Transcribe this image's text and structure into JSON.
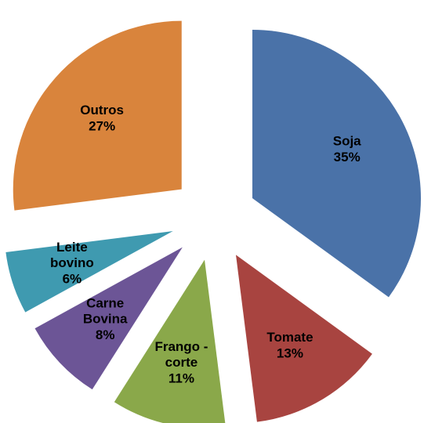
{
  "chart_data": {
    "type": "pie",
    "categories": [
      "Soja",
      "Tomate",
      "Frango - corte",
      "Carne Bovina",
      "Leite bovino",
      "Outros"
    ],
    "values": [
      35,
      13,
      11,
      8,
      6,
      27
    ],
    "value_labels": [
      "35%",
      "13%",
      "11%",
      "8%",
      "6%",
      "27%"
    ],
    "colors": [
      "#4a72a8",
      "#a84440",
      "#8aa84a",
      "#6c5596",
      "#3f9ab0",
      "#d9843c"
    ]
  }
}
